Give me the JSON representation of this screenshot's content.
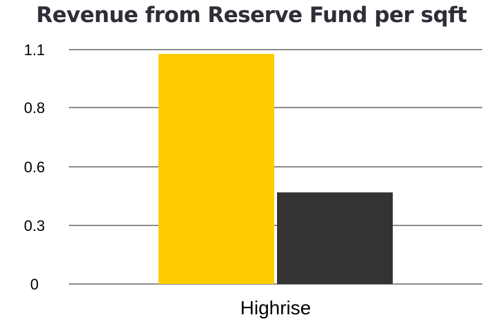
{
  "chart_data": {
    "type": "bar",
    "title": "Revenue from Reserve Fund per sqft",
    "xlabel": "",
    "ylabel": "",
    "categories": [
      "Highrise"
    ],
    "series": [
      {
        "values": [
          1.08
        ]
      },
      {
        "values": [
          0.43
        ]
      }
    ],
    "yticks": [
      "0",
      "0.3",
      "0.6",
      "0.8",
      "1.1"
    ],
    "ylim": [
      0,
      1.1
    ],
    "grid": true,
    "legend": "none",
    "colors": [
      "#FFCC00",
      "#333333"
    ],
    "gridline_color": "#8c8c8c"
  }
}
